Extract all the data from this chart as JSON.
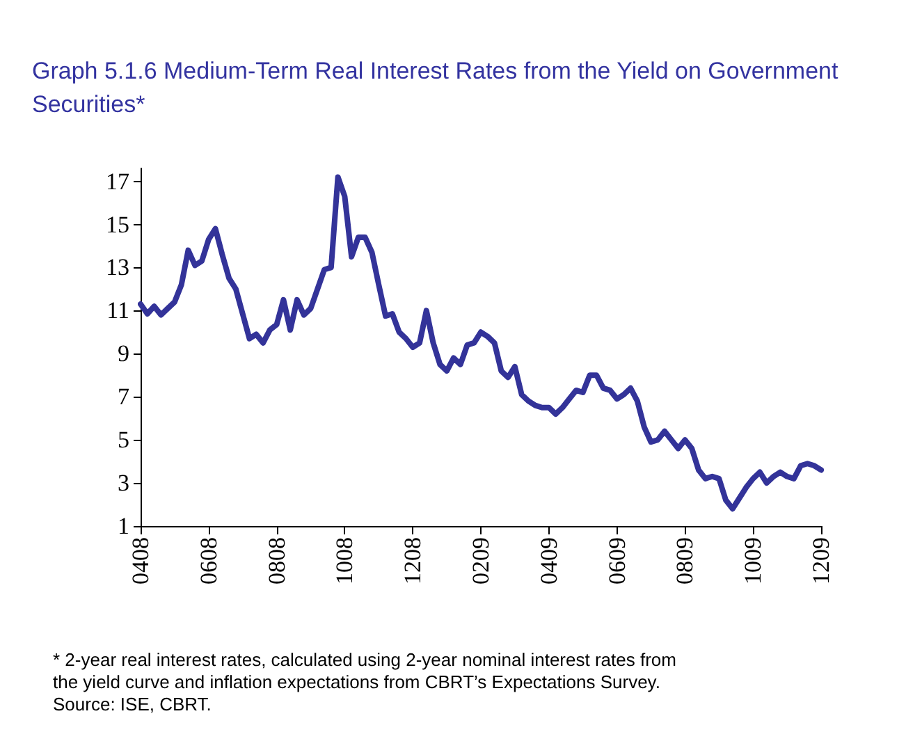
{
  "chart_data": {
    "type": "line",
    "title": "Graph 5.1.6 Medium-Term Real Interest Rates from the Yield on Government Securities*",
    "categories": [
      "0408",
      null,
      null,
      null,
      null,
      null,
      null,
      null,
      null,
      null,
      "0608",
      null,
      null,
      null,
      null,
      null,
      null,
      null,
      null,
      null,
      "0808",
      null,
      null,
      null,
      null,
      null,
      null,
      null,
      null,
      null,
      "1008",
      null,
      null,
      null,
      null,
      null,
      null,
      null,
      null,
      null,
      "1208",
      null,
      null,
      null,
      null,
      null,
      null,
      null,
      null,
      null,
      "0209",
      null,
      null,
      null,
      null,
      null,
      null,
      null,
      null,
      null,
      "0409",
      null,
      null,
      null,
      null,
      null,
      null,
      null,
      null,
      null,
      "0609",
      null,
      null,
      null,
      null,
      null,
      null,
      null,
      null,
      null,
      "0809",
      null,
      null,
      null,
      null,
      null,
      null,
      null,
      null,
      null,
      "1009",
      null,
      null,
      null,
      null,
      null,
      null,
      null,
      null,
      null,
      "1209"
    ],
    "series": [
      {
        "color": "#333399",
        "values": [
          11.3,
          10.85,
          11.2,
          10.8,
          11.1,
          11.4,
          12.2,
          13.8,
          13.1,
          13.3,
          14.3,
          14.8,
          13.6,
          12.5,
          12.0,
          10.85,
          9.7,
          9.9,
          9.5,
          10.1,
          10.35,
          11.5,
          10.1,
          11.5,
          10.8,
          11.1,
          12.0,
          12.9,
          13.0,
          17.2,
          16.3,
          13.5,
          14.4,
          14.4,
          13.7,
          12.2,
          10.75,
          10.85,
          10.0,
          9.7,
          9.3,
          9.5,
          11.0,
          9.5,
          8.5,
          8.2,
          8.8,
          8.5,
          9.4,
          9.5,
          10.0,
          9.8,
          9.5,
          8.2,
          7.9,
          8.4,
          7.1,
          6.8,
          6.6,
          6.5,
          6.5,
          6.2,
          6.5,
          6.9,
          7.3,
          7.2,
          8.0,
          8.0,
          7.4,
          7.3,
          6.9,
          7.1,
          7.4,
          6.8,
          5.6,
          4.9,
          5.0,
          5.4,
          5.0,
          4.6,
          5.0,
          4.6,
          3.6,
          3.2,
          3.3,
          3.2,
          2.2,
          1.8,
          2.3,
          2.8,
          3.2,
          3.5,
          3.0,
          3.3,
          3.5,
          3.3,
          3.2,
          3.8,
          3.9,
          3.8,
          3.6
        ]
      }
    ],
    "ylim": [
      1,
      17.6
    ],
    "yticks": [
      1,
      3,
      5,
      7,
      9,
      11,
      13,
      15,
      17
    ],
    "grid": false,
    "marker": "none",
    "line_style": "solid",
    "annotations": [
      "* 2-year real interest rates, calculated using 2-year nominal interest rates from the yield curve and inflation expectations from CBRT’s Expectations Survey.",
      "Source: ISE, CBRT."
    ]
  }
}
